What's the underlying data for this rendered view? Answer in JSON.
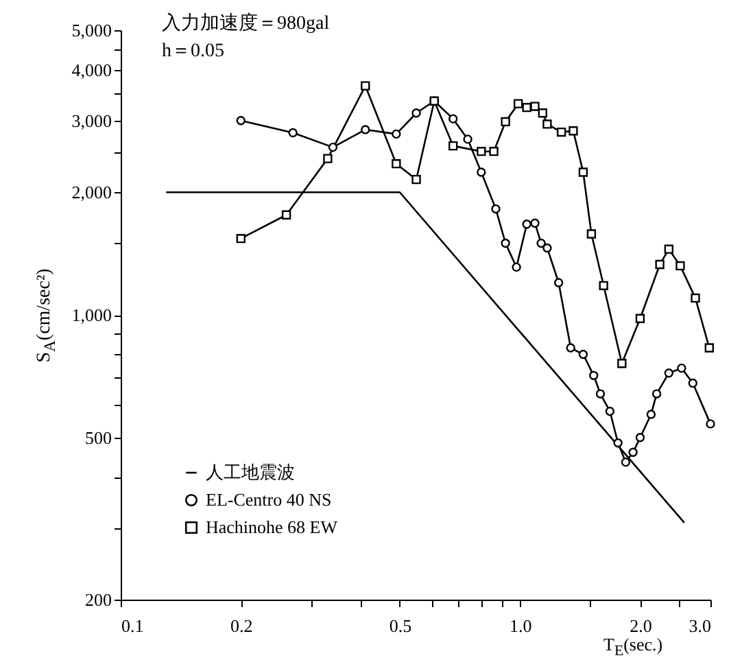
{
  "chart_data": {
    "type": "line",
    "xlabel": "T$_{E}$(sec.)",
    "ylabel": "S$_{A}$(cm/sec²)",
    "log": "xy",
    "grid": false,
    "legend": "bottom left",
    "annotations": [
      "入力加速度＝980gal",
      "h＝0.05"
    ],
    "xlim": [
      0.1,
      3.0
    ],
    "xticks": [
      0.1,
      0.2,
      {
        "value": 0.3,
        "label": null
      },
      {
        "value": 0.4,
        "label": null
      },
      0.5,
      {
        "value": 0.6,
        "label": null
      },
      {
        "value": 0.7,
        "label": null
      },
      {
        "value": 0.8,
        "label": null
      },
      {
        "value": 0.9,
        "label": null
      },
      {
        "value": 1,
        "label": "1.0"
      },
      {
        "value": 1.5,
        "label": null
      },
      {
        "value": 2,
        "label": "2.0"
      },
      {
        "value": 2.5,
        "label": null
      },
      {
        "value": 3,
        "label": "3.0"
      }
    ],
    "ylim": [
      200,
      5000
    ],
    "yticks": [
      200,
      {
        "value": 300,
        "label": null
      },
      {
        "value": 400,
        "label": null
      },
      500,
      {
        "value": 600,
        "label": null
      },
      {
        "value": 700,
        "label": null
      },
      {
        "value": 800,
        "label": null
      },
      {
        "value": 900,
        "label": null
      },
      {
        "value": 1000,
        "label": "1,000"
      },
      {
        "value": 1500,
        "label": null
      },
      {
        "value": 2000,
        "label": "2,000"
      },
      {
        "value": 2500,
        "label": null
      },
      {
        "value": 3000,
        "label": "3,000"
      },
      {
        "value": 3500,
        "label": null
      },
      {
        "value": 4000,
        "label": "4,000"
      },
      {
        "value": 4500,
        "label": null
      },
      {
        "value": 5000,
        "label": "5,000"
      }
    ],
    "series": [
      {
        "name": "人工地震波",
        "color": "#000000",
        "marker": "none",
        "line_style": "solid",
        "x": [
          0.13,
          0.5,
          2.58
        ],
        "values": [
          2000,
          2000,
          309
        ]
      },
      {
        "name": "EL-Centro 40 NS",
        "color": "#000000",
        "marker": "circle",
        "line_style": "solid",
        "x": [
          0.2,
          0.27,
          0.34,
          0.41,
          0.49,
          0.55,
          0.61,
          0.68,
          0.74,
          0.8,
          0.87,
          0.92,
          0.98,
          1.04,
          1.09,
          1.13,
          1.17,
          1.25,
          1.34,
          1.44,
          1.53,
          1.59,
          1.68,
          1.76,
          1.84,
          1.92,
          2.0,
          2.13,
          2.2,
          2.36,
          2.54,
          2.71,
          3.0
        ],
        "values": [
          3000,
          2800,
          2580,
          2850,
          2780,
          3130,
          3350,
          3030,
          2700,
          2240,
          1820,
          1500,
          1310,
          1670,
          1680,
          1500,
          1460,
          1200,
          830,
          800,
          710,
          640,
          580,
          485,
          435,
          460,
          500,
          570,
          640,
          720,
          740,
          680,
          540
        ]
      },
      {
        "name": "Hachinohe 68 EW",
        "color": "#000000",
        "marker": "square",
        "line_style": "solid",
        "x": [
          0.2,
          0.26,
          0.33,
          0.41,
          0.49,
          0.55,
          0.61,
          0.68,
          0.8,
          0.86,
          0.92,
          0.99,
          1.04,
          1.09,
          1.14,
          1.17,
          1.27,
          1.36,
          1.44,
          1.51,
          1.62,
          1.8,
          2.0,
          2.24,
          2.36,
          2.52,
          2.75,
          2.98
        ],
        "values": [
          1540,
          1760,
          2420,
          3650,
          2350,
          2150,
          3350,
          2600,
          2520,
          2520,
          2980,
          3300,
          3230,
          3250,
          3130,
          2940,
          2810,
          2830,
          2240,
          1580,
          1180,
          760,
          980,
          1330,
          1450,
          1320,
          1100,
          830
        ]
      }
    ]
  }
}
